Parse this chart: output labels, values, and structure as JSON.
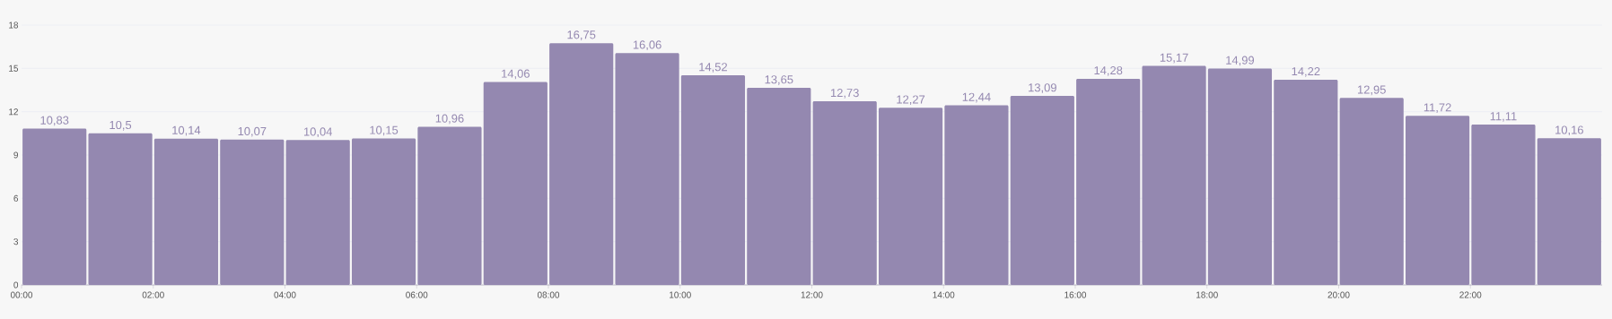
{
  "chart_data": {
    "type": "bar",
    "x": [
      0.5,
      1.5,
      2.5,
      3.5,
      4.5,
      5.5,
      6.5,
      7.5,
      8.5,
      9.5,
      10.5,
      11.5,
      12.5,
      13.5,
      14.5,
      15.5,
      16.5,
      17.5,
      18.5,
      19.5,
      20.5,
      21.5,
      22.5,
      23.5
    ],
    "values": [
      10.83,
      10.5,
      10.14,
      10.07,
      10.04,
      10.15,
      10.96,
      14.06,
      16.75,
      16.06,
      14.52,
      13.65,
      12.73,
      12.27,
      12.44,
      13.09,
      14.28,
      15.17,
      14.99,
      14.22,
      12.95,
      11.72,
      11.11,
      10.16
    ],
    "value_labels": [
      "10,83",
      "10,5",
      "10,14",
      "10,07",
      "10,04",
      "10,15",
      "10,96",
      "14,06",
      "16,75",
      "16,06",
      "14,52",
      "13,65",
      "12,73",
      "12,27",
      "12,44",
      "13,09",
      "14,28",
      "15,17",
      "14,99",
      "14,22",
      "12,95",
      "11,72",
      "11,11",
      "10,16"
    ],
    "color": "#9488b0",
    "xlim": [
      0,
      24
    ],
    "xticks": [
      {
        "value": 0,
        "label": "00:00"
      },
      {
        "value": 2,
        "label": "02:00"
      },
      {
        "value": 4,
        "label": "04:00"
      },
      {
        "value": 6,
        "label": "06:00"
      },
      {
        "value": 8,
        "label": "08:00"
      },
      {
        "value": 10,
        "label": "10:00"
      },
      {
        "value": 12,
        "label": "12:00"
      },
      {
        "value": 14,
        "label": "14:00"
      },
      {
        "value": 16,
        "label": "16:00"
      },
      {
        "value": 18,
        "label": "18:00"
      },
      {
        "value": 20,
        "label": "20:00"
      },
      {
        "value": 22,
        "label": "22:00"
      }
    ],
    "ylim": [
      0,
      18
    ],
    "yticks": [
      0,
      3,
      6,
      9,
      12,
      15,
      18
    ],
    "grid": "y"
  }
}
